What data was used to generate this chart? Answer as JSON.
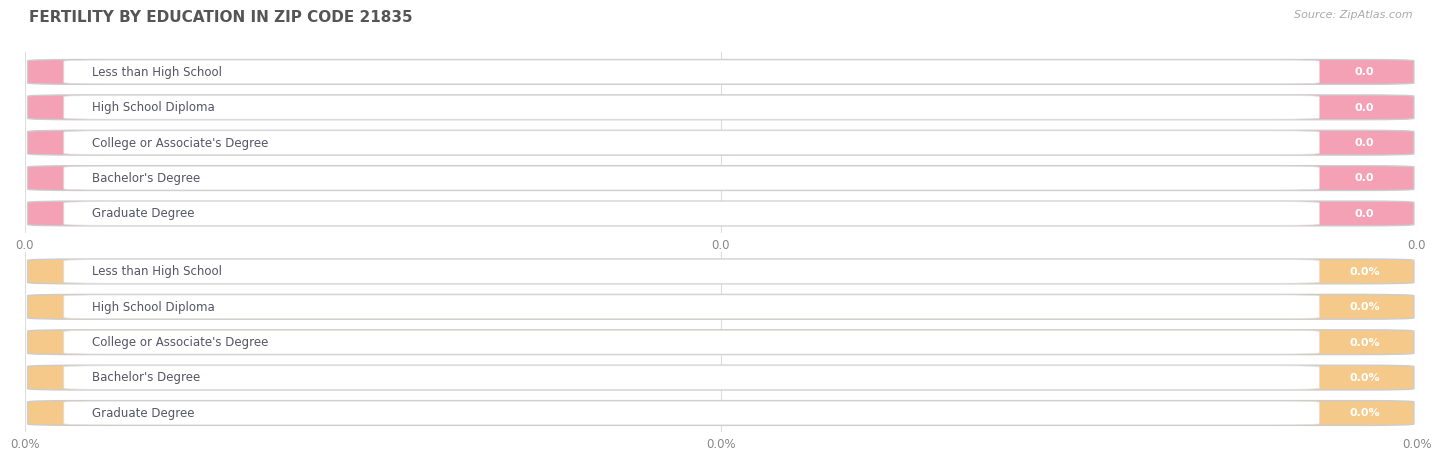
{
  "title": "FERTILITY BY EDUCATION IN ZIP CODE 21835",
  "source": "Source: ZipAtlas.com",
  "categories": [
    "Less than High School",
    "High School Diploma",
    "College or Associate's Degree",
    "Bachelor's Degree",
    "Graduate Degree"
  ],
  "values_top": [
    0.0,
    0.0,
    0.0,
    0.0,
    0.0
  ],
  "values_bottom": [
    0.0,
    0.0,
    0.0,
    0.0,
    0.0
  ],
  "bar_color_top": "#F4A0B5",
  "bar_color_bottom": "#F5C98A",
  "bar_bg_color": "#E8E8EA",
  "label_color_top": "#FFFFFF",
  "label_color_bottom": "#FFFFFF",
  "title_color": "#555555",
  "source_color": "#AAAAAA",
  "label_text_color": "#555566",
  "background_color": "#FFFFFF",
  "xtick_labels_top": [
    "0.0",
    "0.0",
    "0.0"
  ],
  "xtick_labels_bottom": [
    "0.0%",
    "0.0%",
    "0.0%"
  ],
  "bar_value_label_top": [
    "0.0",
    "0.0",
    "0.0",
    "0.0",
    "0.0"
  ],
  "bar_value_label_bottom": [
    "0.0%",
    "0.0%",
    "0.0%",
    "0.0%",
    "0.0%"
  ],
  "white_inner_color": "#FFFFFF",
  "white_inner_edge": "#DDDDDD"
}
